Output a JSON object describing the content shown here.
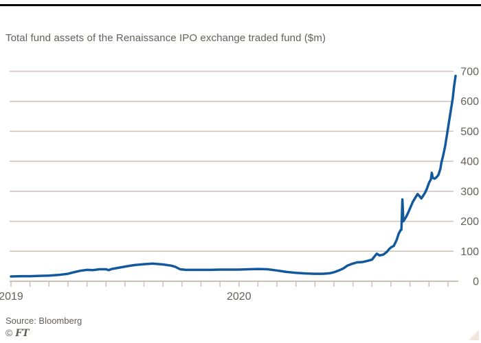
{
  "header": {
    "title": "Total fund assets of the Renaissance IPO exchange traded fund ($m)"
  },
  "footer": {
    "source": "Source: Bloomberg",
    "copyright_symbol": "©",
    "ft_label": "FT"
  },
  "colors": {
    "background": "#ffffff",
    "top_rule": "#000000",
    "line": "#12589d",
    "grid": "#ccc1b7",
    "axis": "#ccc1b7",
    "text": "#66605b",
    "corner_triangle": "#f2e5da"
  },
  "chart_data": {
    "type": "line",
    "title": "Total fund assets of the Renaissance IPO exchange traded fund ($m)",
    "xlabel": "",
    "ylabel": "$m",
    "grid": "horizontal",
    "legend": "none",
    "y_axis": {
      "min": 0,
      "max": 700,
      "tick_step": 100,
      "ticks": [
        0,
        100,
        200,
        300,
        400,
        500,
        600,
        700
      ],
      "tick_labels": [
        "0",
        "100",
        "200",
        "300",
        "400",
        "500",
        "600",
        "700"
      ],
      "labels_side": "right"
    },
    "x_axis": {
      "unit": "months since Jan 2019",
      "tick_months": [
        0,
        1,
        2,
        3,
        4,
        5,
        6,
        7,
        8,
        9,
        10,
        11,
        12,
        13,
        14,
        15,
        16,
        17,
        18,
        19,
        20,
        21,
        22,
        23
      ],
      "year_labels": [
        {
          "label": "2019",
          "month": 0
        },
        {
          "label": "2020",
          "month": 12
        }
      ]
    },
    "series": [
      {
        "name": "Total fund assets ($m)",
        "points": [
          [
            0,
            16
          ],
          [
            0.5,
            17
          ],
          [
            1,
            17
          ],
          [
            1.5,
            18
          ],
          [
            2,
            19
          ],
          [
            2.5,
            21
          ],
          [
            3,
            25
          ],
          [
            3.3,
            30
          ],
          [
            3.65,
            35
          ],
          [
            4,
            38
          ],
          [
            4.3,
            37
          ],
          [
            4.65,
            40
          ],
          [
            5,
            40
          ],
          [
            5.15,
            37
          ],
          [
            5.3,
            41
          ],
          [
            5.75,
            46
          ],
          [
            6,
            49
          ],
          [
            6.5,
            54
          ],
          [
            7,
            57
          ],
          [
            7.45,
            59
          ],
          [
            8,
            56
          ],
          [
            8.45,
            52
          ],
          [
            8.65,
            48
          ],
          [
            8.9,
            40
          ],
          [
            9.2,
            38
          ],
          [
            10,
            38
          ],
          [
            10.5,
            38
          ],
          [
            11,
            39
          ],
          [
            12,
            39
          ],
          [
            12.5,
            40
          ],
          [
            13,
            41
          ],
          [
            13.5,
            40
          ],
          [
            14,
            36
          ],
          [
            14.5,
            31
          ],
          [
            15,
            28
          ],
          [
            15.5,
            26
          ],
          [
            16,
            25
          ],
          [
            16.4,
            25
          ],
          [
            16.8,
            27
          ],
          [
            17,
            30
          ],
          [
            17.3,
            37
          ],
          [
            17.5,
            43
          ],
          [
            17.7,
            52
          ],
          [
            17.9,
            57
          ],
          [
            18.05,
            60
          ],
          [
            18.2,
            63
          ],
          [
            18.5,
            64
          ],
          [
            18.7,
            67
          ],
          [
            19,
            72
          ],
          [
            19.1,
            80
          ],
          [
            19.25,
            92
          ],
          [
            19.4,
            86
          ],
          [
            19.6,
            89
          ],
          [
            19.8,
            99
          ],
          [
            19.9,
            107
          ],
          [
            20,
            113
          ],
          [
            20.15,
            118
          ],
          [
            20.3,
            138
          ],
          [
            20.4,
            158
          ],
          [
            20.5,
            170
          ],
          [
            20.55,
            172
          ],
          [
            20.6,
            273
          ],
          [
            20.65,
            200
          ],
          [
            20.7,
            205
          ],
          [
            20.8,
            215
          ],
          [
            20.9,
            228
          ],
          [
            21.05,
            250
          ],
          [
            21.15,
            265
          ],
          [
            21.4,
            291
          ],
          [
            21.5,
            284
          ],
          [
            21.6,
            276
          ],
          [
            21.7,
            286
          ],
          [
            21.8,
            296
          ],
          [
            21.9,
            310
          ],
          [
            22,
            328
          ],
          [
            22.1,
            340
          ],
          [
            22.15,
            362
          ],
          [
            22.2,
            345
          ],
          [
            22.3,
            342
          ],
          [
            22.4,
            347
          ],
          [
            22.5,
            355
          ],
          [
            22.6,
            375
          ],
          [
            22.65,
            395
          ],
          [
            22.75,
            420
          ],
          [
            22.85,
            450
          ],
          [
            22.95,
            490
          ],
          [
            23.05,
            530
          ],
          [
            23.15,
            570
          ],
          [
            23.25,
            610
          ],
          [
            23.32,
            650
          ],
          [
            23.4,
            685
          ]
        ]
      }
    ]
  }
}
